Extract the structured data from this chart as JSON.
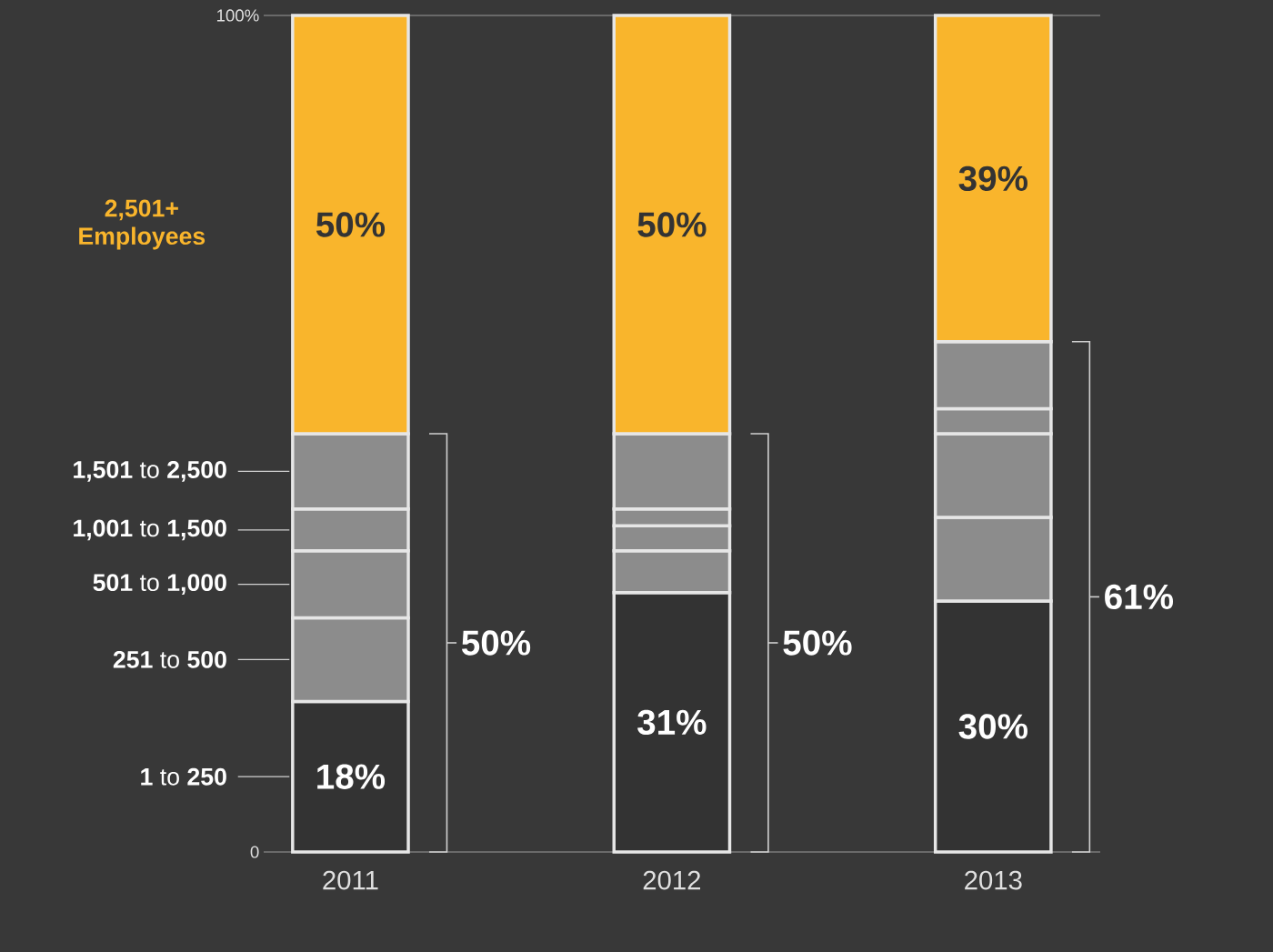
{
  "chart_data": {
    "type": "bar",
    "stacked": true,
    "categories": [
      "2011",
      "2012",
      "2013"
    ],
    "series": [
      {
        "name": "**1** to **250**",
        "color": "#333333",
        "values": [
          18,
          31,
          30
        ],
        "value_labels": [
          "18%",
          "31%",
          "30%"
        ]
      },
      {
        "name": "**251** to **500**",
        "color": "#8c8c8c",
        "values": [
          10,
          5,
          10
        ],
        "value_labels": [
          null,
          null,
          null
        ]
      },
      {
        "name": "**501** to **1,000**",
        "color": "#8c8c8c",
        "values": [
          8,
          3,
          10
        ],
        "value_labels": [
          null,
          null,
          null
        ]
      },
      {
        "name": "**1,001** to **1,500**",
        "color": "#8c8c8c",
        "values": [
          5,
          2,
          3
        ],
        "value_labels": [
          null,
          null,
          null
        ]
      },
      {
        "name": "**1,501** to **2,500**",
        "color": "#8c8c8c",
        "values": [
          9,
          9,
          8
        ],
        "value_labels": [
          null,
          null,
          null
        ]
      },
      {
        "name": "2,501+ Employees",
        "color": "#f9b52c",
        "values": [
          50,
          50,
          39
        ],
        "value_labels": [
          "50%",
          "50%",
          "39%"
        ]
      }
    ],
    "ylim": [
      0,
      100
    ],
    "yticks": [
      0,
      {
        "value": 100,
        "label": "100%"
      }
    ],
    "annotations": [
      "50%",
      "50%",
      "61%"
    ]
  }
}
